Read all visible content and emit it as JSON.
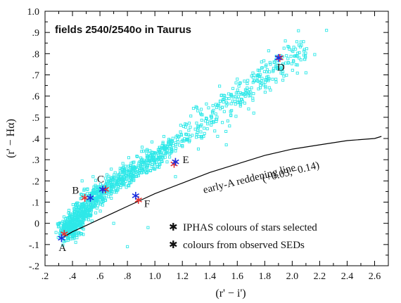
{
  "chart_data": {
    "type": "scatter",
    "title": "fields 2540/2540o in Taurus",
    "xlabel": "(r' − i')",
    "ylabel": "(r' − Hα)",
    "xlim": [
      0.2,
      2.7
    ],
    "ylim": [
      -0.2,
      1.0
    ],
    "x_ticks": [
      0.2,
      0.4,
      0.6,
      0.8,
      1.0,
      1.2,
      1.4,
      1.6,
      1.8,
      2.0,
      2.2,
      2.4,
      2.6
    ],
    "x_tick_labels": [
      ".2",
      ".4",
      ".6",
      ".8",
      "1.0",
      "1.2",
      "1.4",
      "1.6",
      "1.8",
      "2.0",
      "2.2",
      "2.4",
      "2.6"
    ],
    "y_ticks": [
      -0.2,
      -0.1,
      0.0,
      0.1,
      0.2,
      0.3,
      0.4,
      0.5,
      0.6,
      0.7,
      0.8,
      0.9,
      1.0
    ],
    "y_tick_labels": [
      "-.2",
      "-.1",
      "0",
      ".1",
      ".2",
      ".3",
      ".4",
      ".5",
      ".6",
      ".7",
      ".8",
      ".9",
      "1.0"
    ],
    "colors": {
      "field_stars": "#2ee8e8",
      "iphas": "#1a2ee0",
      "sed": "#e83030",
      "line": "#000000"
    },
    "field_stars": {
      "description_source": "dense cloud of field stars",
      "core": [
        [
          0.36,
          -0.04
        ],
        [
          0.4,
          -0.01
        ],
        [
          0.44,
          0.03
        ],
        [
          0.48,
          0.06
        ],
        [
          0.52,
          0.09
        ],
        [
          0.56,
          0.12
        ],
        [
          0.6,
          0.15
        ],
        [
          0.65,
          0.17
        ],
        [
          0.7,
          0.19
        ],
        [
          0.75,
          0.21
        ],
        [
          0.8,
          0.23
        ],
        [
          0.85,
          0.25
        ],
        [
          0.9,
          0.27
        ],
        [
          0.95,
          0.29
        ],
        [
          1.0,
          0.31
        ],
        [
          1.05,
          0.33
        ],
        [
          1.1,
          0.36
        ],
        [
          1.2,
          0.4
        ],
        [
          1.3,
          0.45
        ],
        [
          1.4,
          0.5
        ],
        [
          1.5,
          0.55
        ],
        [
          1.6,
          0.59
        ],
        [
          1.7,
          0.64
        ],
        [
          1.8,
          0.69
        ],
        [
          1.9,
          0.74
        ],
        [
          2.0,
          0.78
        ],
        [
          2.1,
          0.82
        ]
      ],
      "outliers": [
        [
          2.25,
          0.91
        ],
        [
          2.1,
          0.71
        ],
        [
          2.05,
          0.84
        ],
        [
          1.95,
          0.86
        ],
        [
          0.8,
          -0.11
        ],
        [
          0.95,
          -0.02
        ],
        [
          0.47,
          0.2
        ],
        [
          1.52,
          0.37
        ],
        [
          1.3,
          0.55
        ],
        [
          1.72,
          0.52
        ],
        [
          1.6,
          0.68
        ],
        [
          0.7,
          0.0
        ],
        [
          1.15,
          0.22
        ],
        [
          0.55,
          0.22
        ]
      ]
    },
    "iphas_points": [
      {
        "label": "A",
        "x": 0.32,
        "y": -0.07
      },
      {
        "label": "B",
        "x": 0.53,
        "y": 0.12
      },
      {
        "label": "C",
        "x": 0.62,
        "y": 0.16
      },
      {
        "label": "F",
        "x": 0.86,
        "y": 0.13
      },
      {
        "label": "E",
        "x": 1.15,
        "y": 0.29
      },
      {
        "label": "D",
        "x": 1.9,
        "y": 0.78
      }
    ],
    "sed_points": [
      {
        "x": 0.34,
        "y": -0.05
      },
      {
        "x": 0.49,
        "y": 0.12
      },
      {
        "x": 0.64,
        "y": 0.16
      },
      {
        "x": 0.88,
        "y": 0.11
      },
      {
        "x": 1.14,
        "y": 0.28
      },
      {
        "x": 1.91,
        "y": 0.78
      }
    ],
    "reddening_line": [
      [
        0.32,
        -0.07
      ],
      [
        0.4,
        -0.04
      ],
      [
        0.5,
        -0.01
      ],
      [
        0.6,
        0.02
      ],
      [
        0.7,
        0.05
      ],
      [
        0.8,
        0.08
      ],
      [
        0.9,
        0.11
      ],
      [
        1.0,
        0.14
      ],
      [
        1.2,
        0.19
      ],
      [
        1.4,
        0.24
      ],
      [
        1.6,
        0.28
      ],
      [
        1.8,
        0.32
      ],
      [
        2.0,
        0.35
      ],
      [
        2.2,
        0.37
      ],
      [
        2.4,
        0.39
      ],
      [
        2.6,
        0.4
      ],
      [
        2.65,
        0.41
      ]
    ],
    "annotations": {
      "line_label_1": "early-A reddening line",
      "line_label_2": "(+0.03,−0.14)"
    },
    "legend": {
      "placement": "bottom-right",
      "entries": [
        {
          "symbol": "*",
          "color_key": "iphas",
          "text": "IPHAS colours of stars selected"
        },
        {
          "symbol": "*",
          "color_key": "sed",
          "text": "colours from observed SEDs"
        }
      ]
    }
  }
}
